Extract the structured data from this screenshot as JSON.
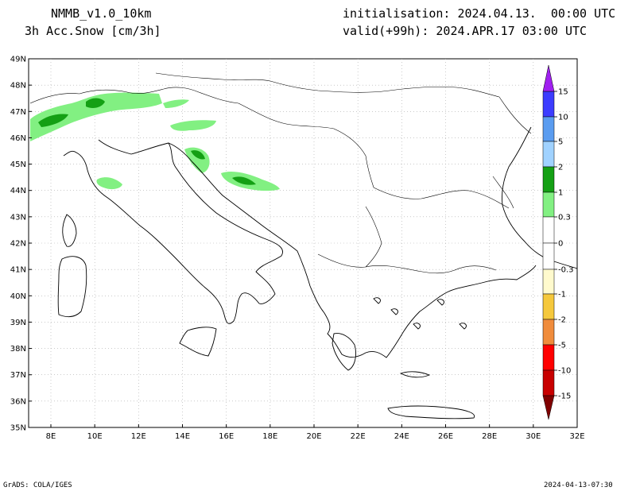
{
  "header": {
    "model": "NMMB_v1.0_10km",
    "field": "3h Acc.Snow [cm/3h]",
    "init": "initialisation: 2024.04.13.  00:00 UTC",
    "valid": "valid(+99h): 2024.APR.17 03:00 UTC"
  },
  "footer": {
    "left": "GrADS: COLA/IGES",
    "right": "2024-04-13-07:30"
  },
  "axes": {
    "lat_labels": [
      "49N",
      "48N",
      "47N",
      "46N",
      "45N",
      "44N",
      "43N",
      "42N",
      "41N",
      "40N",
      "39N",
      "38N",
      "37N",
      "36N",
      "35N"
    ],
    "lon_labels": [
      "8E",
      "10E",
      "12E",
      "14E",
      "16E",
      "18E",
      "20E",
      "22E",
      "24E",
      "26E",
      "28E",
      "30E",
      "32E"
    ]
  },
  "colorbar": {
    "labels": [
      "15",
      "10",
      "5",
      "2",
      "1",
      "0.3",
      "0",
      "-0.3",
      "-1",
      "-2",
      "-5",
      "-10",
      "-15"
    ],
    "colors": {
      "violet": "#a020f0",
      "blue_dark": "#3c3cff",
      "blue_mid": "#5a9cf0",
      "blue_light": "#a0d2ff",
      "green_dark": "#14a014",
      "green_light": "#82f082",
      "cream": "#fffacd",
      "yellow": "#f5c83c",
      "orange": "#f08c3c",
      "red": "#ff0000",
      "red_dark": "#c80000",
      "maroon": "#800000"
    }
  }
}
